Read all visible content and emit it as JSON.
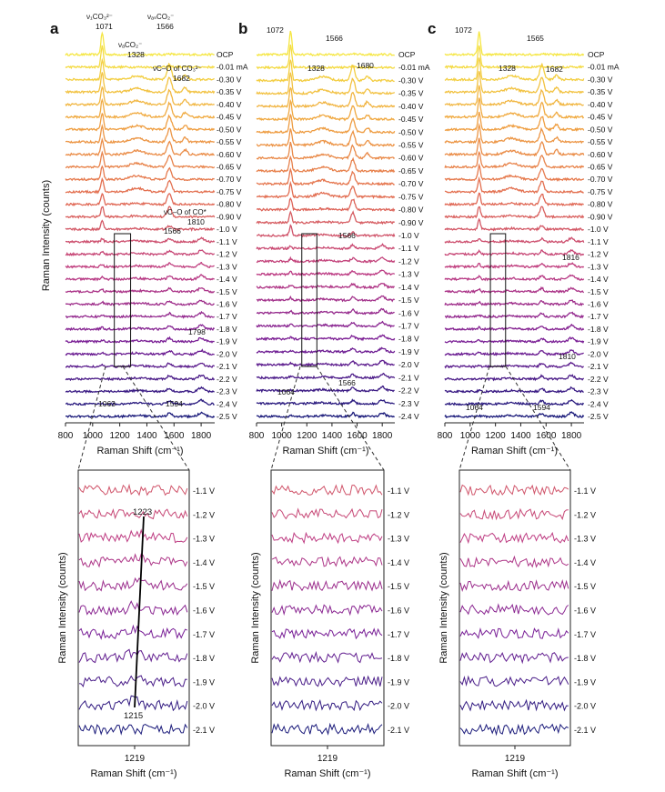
{
  "chart_data": [
    {
      "panel_label": "a",
      "type": "line",
      "xlabel": "Raman Shift (cm⁻¹)",
      "ylabel": "Raman Intensity (counts)",
      "xlim": [
        800,
        1900
      ],
      "xticks": [
        "800",
        "1000",
        "1200",
        "1400",
        "1600",
        "1800"
      ],
      "series": [
        "OCP",
        "-0.01 mA",
        "-0.30 V",
        "-0.35 V",
        "-0.40 V",
        "-0.45 V",
        "-0.50 V",
        "-0.55 V",
        "-0.60 V",
        "-0.65 V",
        "-0.70 V",
        "-0.75 V",
        "-0.80 V",
        "-0.90 V",
        "-1.0 V",
        "-1.1 V",
        "-1.2 V",
        "-1.3 V",
        "-1.4 V",
        "-1.5 V",
        "-1.6 V",
        "-1.7 V",
        "-1.8 V",
        "-1.9 V",
        "-2.0 V",
        "-2.1 V",
        "-2.2 V",
        "-2.3 V",
        "-2.4 V",
        "-2.5 V"
      ],
      "peak_labels": [
        {
          "label": "ν₁CO₃²⁻",
          "value": "1071"
        },
        {
          "label": "νₐCO₂⁻",
          "value": "1328"
        },
        {
          "label": "νₐₛCO₂⁻",
          "value": "1566"
        },
        {
          "label": "νC–O of CO₃²⁻",
          "value": "1682"
        },
        {
          "label": "νC–O of CO*",
          "value": "1810"
        },
        {
          "label": "",
          "value": "1566"
        },
        {
          "label": "",
          "value": "1798"
        },
        {
          "label": "",
          "value": "1063"
        },
        {
          "label": "",
          "value": "1594"
        }
      ]
    },
    {
      "panel_label": "b",
      "type": "line",
      "xlabel": "Raman Shift (cm⁻¹)",
      "xlim": [
        800,
        1900
      ],
      "xticks": [
        "800",
        "1000",
        "1200",
        "1400",
        "1600",
        "1800"
      ],
      "series": [
        "OCP",
        "-0.01 mA",
        "-0.30 V",
        "-0.35 V",
        "-0.40 V",
        "-0.45 V",
        "-0.50 V",
        "-0.55 V",
        "-0.60 V",
        "-0.65 V",
        "-0.70 V",
        "-0.75 V",
        "-0.80 V",
        "-0.90 V",
        "-1.0 V",
        "-1.1 V",
        "-1.2 V",
        "-1.3 V",
        "-1.4 V",
        "-1.5 V",
        "-1.6 V",
        "-1.7 V",
        "-1.8 V",
        "-1.9 V",
        "-2.0 V",
        "-2.1 V",
        "-2.2 V",
        "-2.3 V",
        "-2.4 V"
      ],
      "peak_labels": [
        "1072",
        "1566",
        "1328",
        "1680",
        "1566",
        "1064",
        "1566"
      ]
    },
    {
      "panel_label": "c",
      "type": "line",
      "xlabel": "Raman Shift (cm⁻¹)",
      "xlim": [
        800,
        1900
      ],
      "xticks": [
        "800",
        "1000",
        "1200",
        "1400",
        "1600",
        "1800"
      ],
      "series": [
        "OCP",
        "-0.01 mA",
        "-0.30 V",
        "-0.35 V",
        "-0.40 V",
        "-0.45 V",
        "-0.50 V",
        "-0.55 V",
        "-0.60 V",
        "-0.65 V",
        "-0.70 V",
        "-0.75 V",
        "-0.80 V",
        "-0.90 V",
        "-1.0 V",
        "-1.1 V",
        "-1.2 V",
        "-1.3 V",
        "-1.4 V",
        "-1.5 V",
        "-1.6 V",
        "-1.7 V",
        "-1.8 V",
        "-1.9 V",
        "-2.0 V",
        "-2.1 V",
        "-2.2 V",
        "-2.3 V",
        "-2.4 V",
        "-2.5 V"
      ],
      "peak_labels": [
        "1072",
        "1565",
        "1328",
        "1682",
        "1816",
        "1810",
        "1064",
        "1594"
      ]
    },
    {
      "panel_label": "a (zoom)",
      "type": "line",
      "xlabel": "Raman Shift (cm⁻¹)",
      "ylabel": "Raman Intensity (counts)",
      "xticks": [
        "1219"
      ],
      "series": [
        "-1.1 V",
        "-1.2 V",
        "-1.3 V",
        "-1.4 V",
        "-1.5 V",
        "-1.6 V",
        "-1.7 V",
        "-1.8 V",
        "-1.9 V",
        "-2.0 V",
        "-2.1 V"
      ],
      "peak_labels": [
        "1223",
        "1215"
      ]
    },
    {
      "panel_label": "b (zoom)",
      "type": "line",
      "xlabel": "Raman Shift (cm⁻¹)",
      "ylabel": "Raman Intensity (counts)",
      "xticks": [
        "1219"
      ],
      "series": [
        "-1.1 V",
        "-1.2 V",
        "-1.3 V",
        "-1.4 V",
        "-1.5 V",
        "-1.6 V",
        "-1.7 V",
        "-1.8 V",
        "-1.9 V",
        "-2.0 V",
        "-2.1 V"
      ]
    },
    {
      "panel_label": "c (zoom)",
      "type": "line",
      "xlabel": "Raman Shift (cm⁻¹)",
      "ylabel": "Raman Intensity (counts)",
      "xticks": [
        "1219"
      ],
      "series": [
        "-1.1 V",
        "-1.2 V",
        "-1.3 V",
        "-1.4 V",
        "-1.5 V",
        "-1.6 V",
        "-1.7 V",
        "-1.8 V",
        "-1.9 V",
        "-2.0 V",
        "-2.1 V"
      ]
    }
  ],
  "colors": {
    "start": "#f5e642",
    "mid": "#e8764a",
    "late": "#b02a8c",
    "end": "#1a1a7a"
  }
}
